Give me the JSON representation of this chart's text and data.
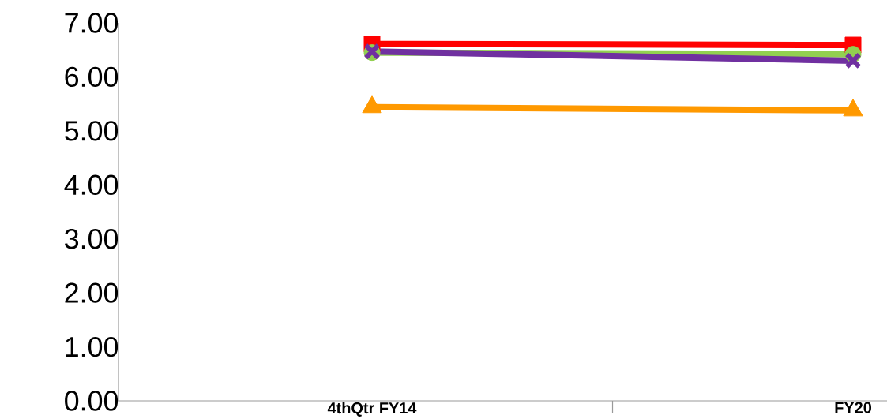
{
  "chart_data": {
    "type": "line",
    "categories": [
      "4thQtr FY14",
      "FY20"
    ],
    "series": [
      {
        "color": "#ff0000",
        "marker": "square",
        "values": [
          6.61,
          6.59
        ]
      },
      {
        "color": "#92d050",
        "marker": "circle",
        "values": [
          6.45,
          6.42
        ]
      },
      {
        "color": "#7030a0",
        "marker": "cross",
        "values": [
          6.47,
          6.3
        ]
      },
      {
        "color": "#ff9900",
        "marker": "triangle",
        "values": [
          5.44,
          5.38
        ]
      }
    ],
    "ylim": [
      0,
      7
    ],
    "yticks": [
      {
        "value": 0,
        "label": "0.00"
      },
      {
        "value": 1,
        "label": "1.00"
      },
      {
        "value": 2,
        "label": "2.00"
      },
      {
        "value": 3,
        "label": "3.00"
      },
      {
        "value": 4,
        "label": "4.00"
      },
      {
        "value": 5,
        "label": "5.00"
      },
      {
        "value": 6,
        "label": "6.00"
      },
      {
        "value": 7,
        "label": "7.00"
      }
    ],
    "line_style": "solid"
  }
}
